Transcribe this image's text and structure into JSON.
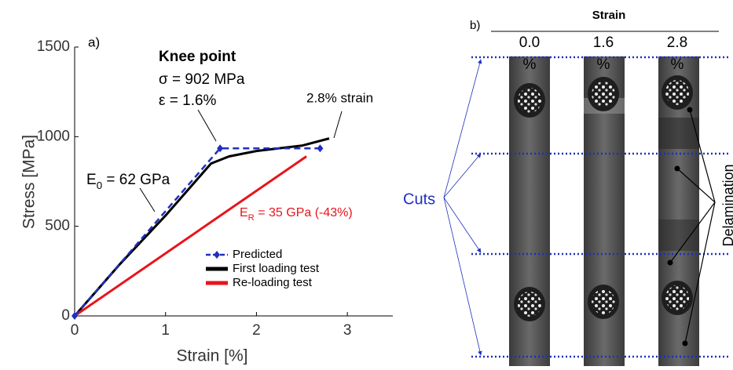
{
  "chart_data": {
    "type": "line",
    "panel_label": "a)",
    "x_label": "Strain [%]",
    "y_label": "Stress [MPa]",
    "xlim": [
      0,
      3.5
    ],
    "ylim": [
      0,
      1500
    ],
    "xticks": [
      0,
      1,
      2,
      3
    ],
    "yticks": [
      0,
      500,
      1000,
      1500
    ],
    "series": [
      {
        "name": "Predicted",
        "color": "#1f2fbf",
        "dashed": true,
        "marker": "diamond",
        "x": [
          0,
          1.6,
          2.7
        ],
        "values": [
          0,
          935,
          935
        ]
      },
      {
        "name": "First loading test",
        "color": "#000000",
        "x": [
          0,
          0.5,
          1,
          1.5,
          1.7,
          2,
          2.5,
          2.8
        ],
        "values": [
          0,
          290,
          560,
          850,
          890,
          920,
          950,
          990
        ]
      },
      {
        "name": "Re-loading test",
        "color": "#e8141a",
        "x": [
          0,
          2.55
        ],
        "values": [
          0,
          890
        ]
      }
    ],
    "annotations": {
      "knee_title": "Knee point",
      "knee_sigma": "σ = 902 MPa",
      "knee_eps": "ε = 1.6%",
      "end_strain": "2.8% strain",
      "e0": [
        "E",
        "0",
        " = 62 GPa"
      ],
      "er": [
        "E",
        "R",
        " = 35 GPa (-43%)"
      ]
    }
  },
  "panel_b": {
    "label": "b)",
    "header": "Strain",
    "columns": [
      {
        "value": "0.0",
        "unit": "%"
      },
      {
        "value": "1.6",
        "unit": "%"
      },
      {
        "value": "2.8",
        "unit": "%"
      }
    ],
    "cuts_label": "Cuts",
    "delamination_label": "Delamination"
  }
}
